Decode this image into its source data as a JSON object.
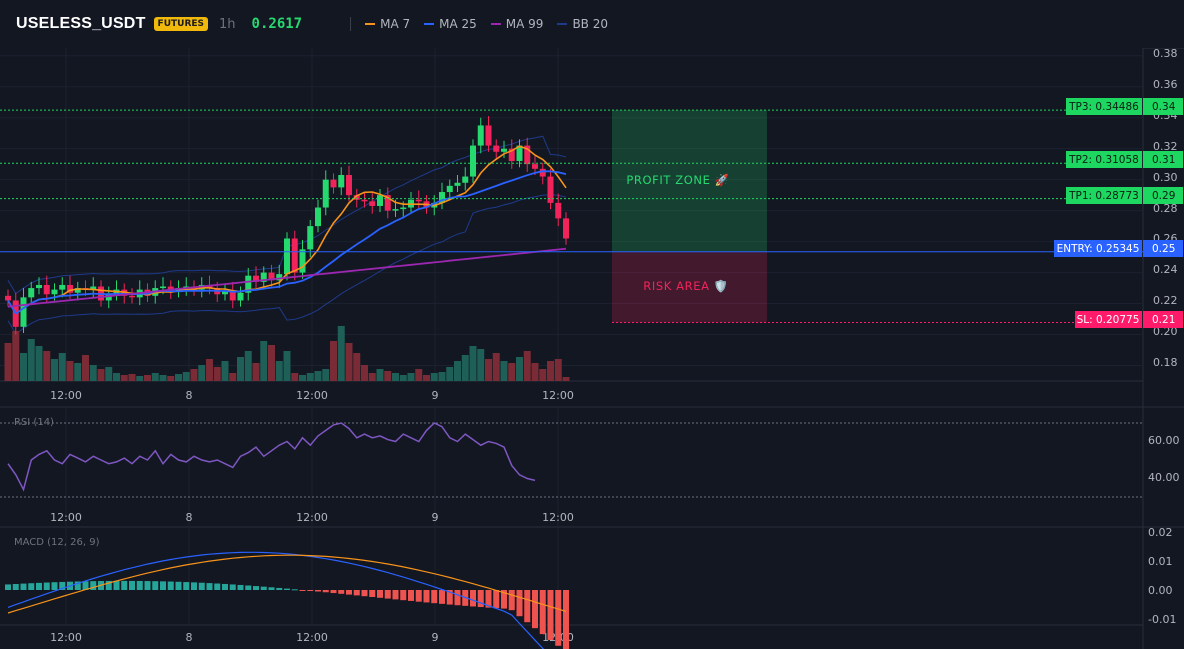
{
  "header": {
    "symbol": "USELESS_USDT",
    "badge": "FUTURES",
    "timeframe": "1h",
    "last_price": "0.2617"
  },
  "legend": [
    {
      "label": "MA 7",
      "color": "#f7931a"
    },
    {
      "label": "MA 25",
      "color": "#2962ff"
    },
    {
      "label": "MA 99",
      "color": "#9c27b0"
    },
    {
      "label": "BB 20",
      "color": "#1e3a8a"
    }
  ],
  "colors": {
    "up": "#26d96f",
    "down": "#f0245a",
    "vol_up": "#1e5f57",
    "vol_down": "#7a2b35",
    "entry": "#2962ff",
    "tp": "#1ed760",
    "sl": "#ff1a6a"
  },
  "time_axis": [
    "12:00",
    "8",
    "12:00",
    "9",
    "12:00"
  ],
  "chart_data": [
    {
      "type": "candlestick",
      "panel": "price",
      "y_ticks": [
        "0.38",
        "0.36",
        "0.34",
        "0.32",
        "0.30",
        "0.28",
        "0.26",
        "0.24",
        "0.22",
        "0.20",
        "0.18"
      ],
      "ylim": [
        0.17,
        0.385
      ],
      "levels": [
        {
          "name": "tp3",
          "label": "TP3: 0.34486",
          "axis": "0.34",
          "value": 0.34486
        },
        {
          "name": "tp2",
          "label": "TP2: 0.31058",
          "axis": "0.31",
          "value": 0.31058
        },
        {
          "name": "tp1",
          "label": "TP1: 0.28773",
          "axis": "0.29",
          "value": 0.28773
        },
        {
          "name": "entry",
          "label": "ENTRY: 0.25345",
          "axis": "0.25",
          "value": 0.25345
        },
        {
          "name": "sl",
          "label": "SL: 0.20775",
          "axis": "0.21",
          "value": 0.20775
        }
      ],
      "zones": {
        "profit_label": "PROFIT ZONE 🚀",
        "risk_label": "RISK AREA 🛡️"
      }
    },
    {
      "type": "line",
      "panel": "rsi",
      "title": "RSI (14)",
      "y_ticks": [
        "60.00",
        "40.00"
      ],
      "values": [
        48,
        42,
        34,
        50,
        53,
        55,
        50,
        48,
        53,
        51,
        49,
        52,
        50,
        48,
        49,
        51,
        48,
        52,
        50,
        55,
        48,
        53,
        50,
        49,
        52,
        50,
        49,
        50,
        48,
        46,
        52,
        54,
        57,
        52,
        55,
        58,
        60,
        56,
        62,
        58,
        63,
        66,
        69,
        70,
        67,
        62,
        64,
        62,
        63,
        61,
        60,
        64,
        62,
        60,
        66,
        70,
        68,
        62,
        60,
        64,
        61,
        58,
        60,
        59,
        57,
        47,
        42,
        40,
        39
      ]
    },
    {
      "type": "bar+line",
      "panel": "macd",
      "title": "MACD (12, 26, 9)",
      "y_ticks": [
        "0.02",
        "0.01",
        "0.00",
        "-0.01"
      ]
    }
  ]
}
